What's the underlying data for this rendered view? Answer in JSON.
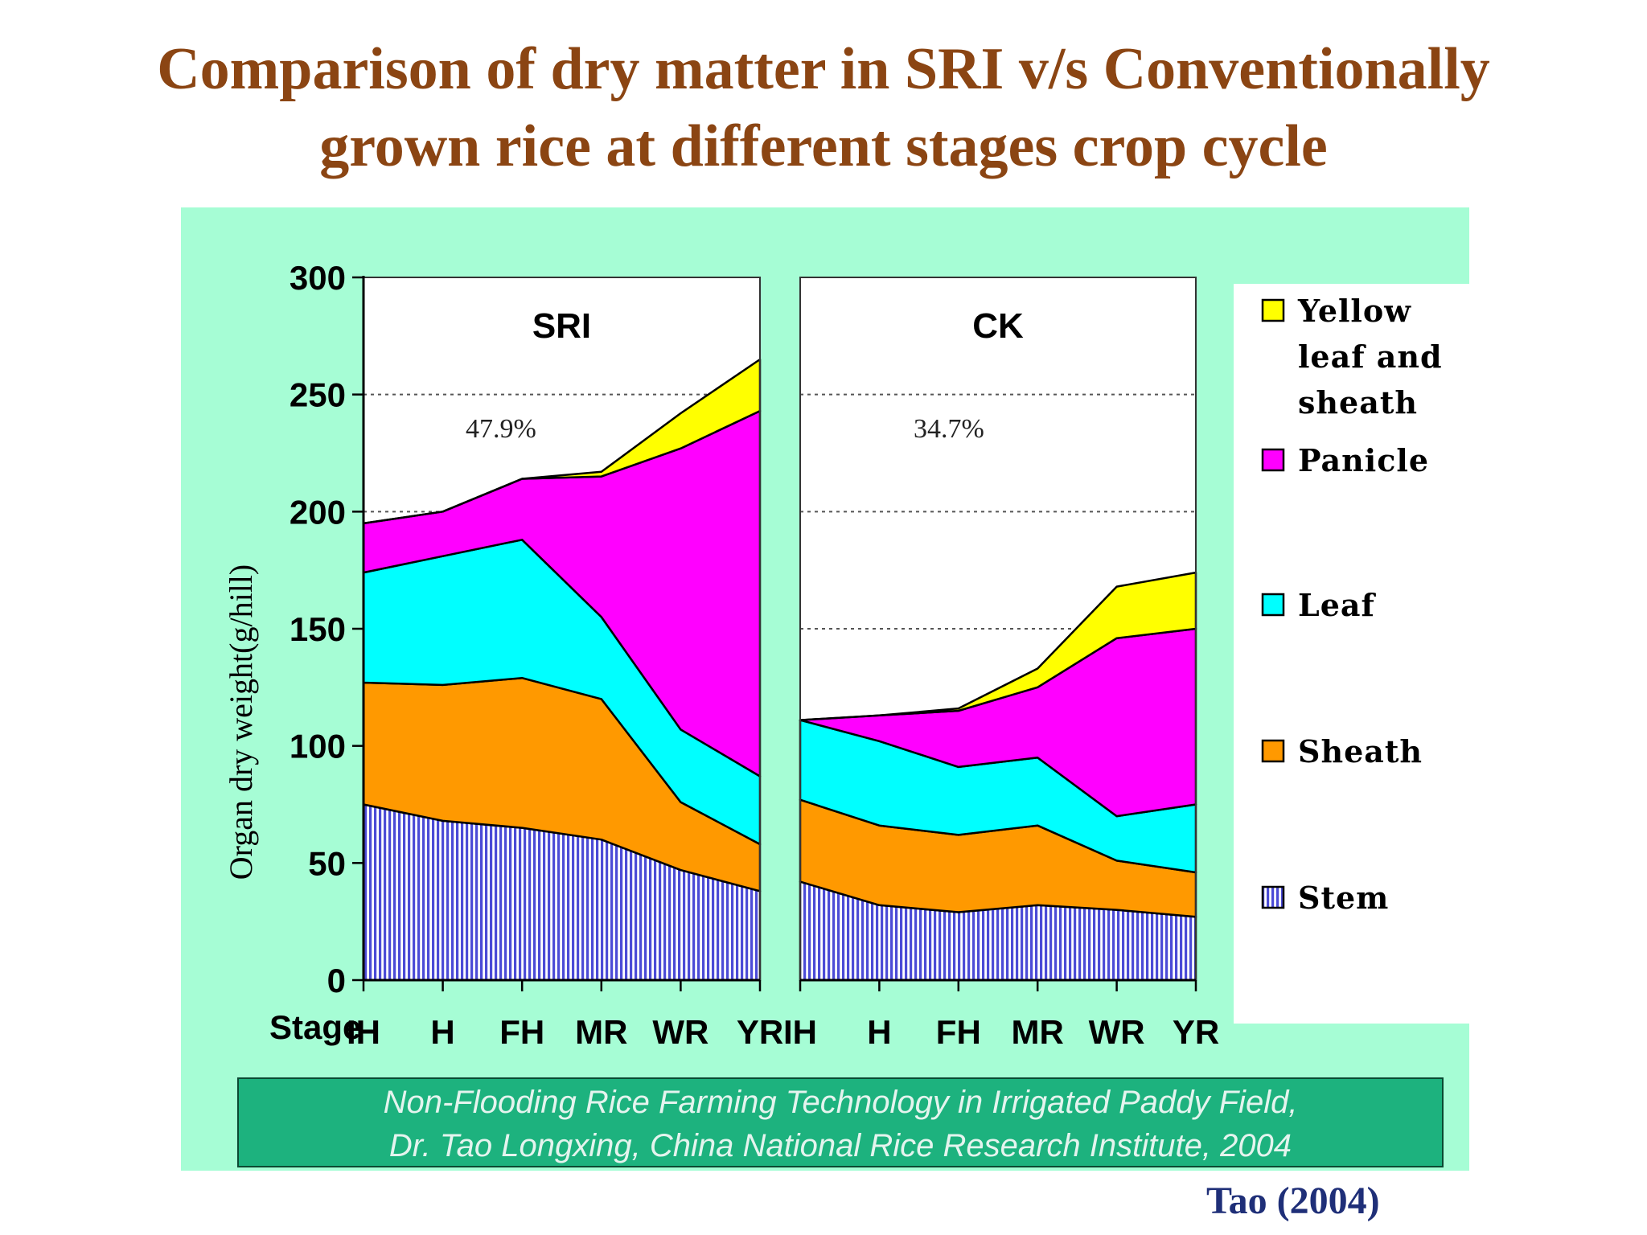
{
  "slide": {
    "title_line1": "Comparison of dry matter in SRI v/s Conventionally",
    "title_line2": "grown rice at different stages crop cycle",
    "title_color": "#8b4513",
    "footer_line1": "Non-Flooding Rice Farming Technology in Irrigated Paddy Field,",
    "footer_line2": "Dr. Tao Longxing, China National Rice Research Institute, 2004",
    "footer_bg": "#1db27e",
    "footer_text_color": "#e4f4ee",
    "citation": "Tao (2004)",
    "figure_bg": "#a6fdd5"
  },
  "chart_data": {
    "type": "area",
    "stacked": true,
    "ylabel": "Organ dry weight(g/hill)",
    "xlabel": "Stage",
    "ylim": [
      0,
      300
    ],
    "yticks": [
      0,
      50,
      100,
      150,
      200,
      250,
      300
    ],
    "grid": "dotted horizontal at 150, 200, 250",
    "legend_position": "right",
    "legend": [
      {
        "label_lines": [
          "Yellow",
          "leaf and",
          "sheath"
        ],
        "color": "#ffff00"
      },
      {
        "label_lines": [
          "Panicle"
        ],
        "color": "#ff00ff"
      },
      {
        "label_lines": [
          "Leaf"
        ],
        "color": "#00ffff"
      },
      {
        "label_lines": [
          "Sheath"
        ],
        "color": "#ff9900"
      },
      {
        "label_lines": [
          "Stem"
        ],
        "color": "#4b4bd6",
        "pattern": "vertical-stripes"
      }
    ],
    "panels": [
      {
        "name": "SRI",
        "annotation": "47.9%",
        "categories": [
          "IH",
          "H",
          "FH",
          "MR",
          "WR",
          "YR"
        ],
        "series": [
          {
            "name": "Stem",
            "values": [
              75,
              68,
              65,
              60,
              47,
              38
            ]
          },
          {
            "name": "Sheath",
            "values": [
              52,
              58,
              64,
              60,
              29,
              20
            ]
          },
          {
            "name": "Leaf",
            "values": [
              47,
              55,
              59,
              35,
              31,
              29
            ]
          },
          {
            "name": "Panicle",
            "values": [
              21,
              19,
              26,
              60,
              120,
              156
            ]
          },
          {
            "name": "Yellow leaf and sheath",
            "values": [
              0,
              0,
              0,
              2,
              15,
              22
            ]
          }
        ]
      },
      {
        "name": "CK",
        "annotation": "34.7%",
        "categories": [
          "IH",
          "H",
          "FH",
          "MR",
          "WR",
          "YR"
        ],
        "series": [
          {
            "name": "Stem",
            "values": [
              42,
              32,
              29,
              32,
              30,
              27
            ]
          },
          {
            "name": "Sheath",
            "values": [
              35,
              34,
              33,
              34,
              21,
              19
            ]
          },
          {
            "name": "Leaf",
            "values": [
              34,
              36,
              29,
              29,
              19,
              29
            ]
          },
          {
            "name": "Panicle",
            "values": [
              0,
              11,
              24,
              30,
              76,
              75
            ]
          },
          {
            "name": "Yellow leaf and sheath",
            "values": [
              0,
              0,
              1,
              8,
              22,
              24
            ]
          }
        ]
      }
    ]
  }
}
